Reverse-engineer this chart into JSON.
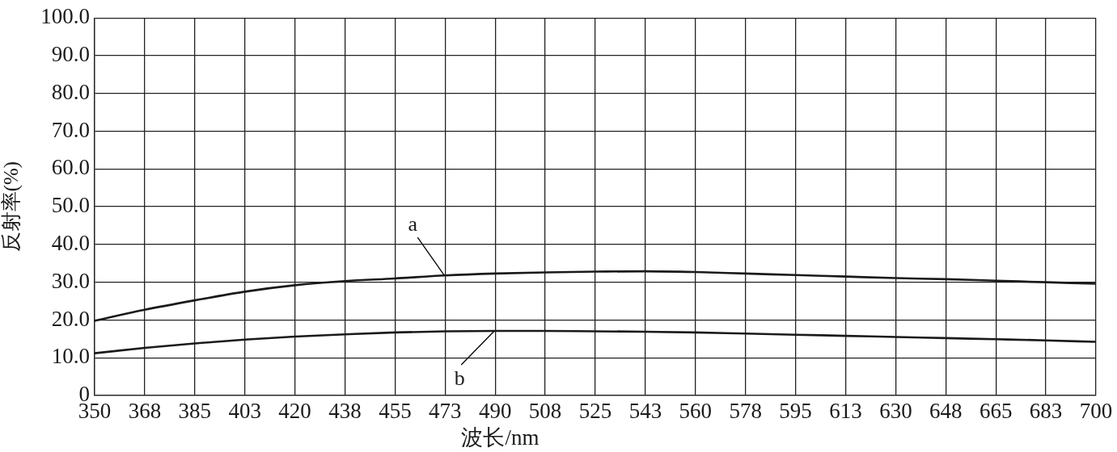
{
  "chart_data": {
    "type": "line",
    "xlabel": "波长/nm",
    "ylabel": "反射率(%)",
    "x": [
      350,
      367.5,
      385,
      402.5,
      420,
      437.5,
      455,
      472.5,
      490,
      507.5,
      525,
      542.5,
      560,
      577.5,
      595,
      612.5,
      630,
      647.5,
      665,
      682.5,
      700
    ],
    "series": [
      {
        "name": "a",
        "color": "#1a1a1a",
        "values": [
          19.8,
          22.7,
          25.2,
          27.5,
          29.2,
          30.3,
          31.0,
          31.8,
          32.3,
          32.6,
          32.8,
          32.9,
          32.7,
          32.3,
          31.9,
          31.5,
          31.1,
          30.8,
          30.4,
          30.0,
          29.6
        ]
      },
      {
        "name": "b",
        "color": "#1a1a1a",
        "values": [
          11.2,
          12.6,
          13.8,
          14.8,
          15.6,
          16.2,
          16.7,
          17.0,
          17.1,
          17.1,
          17.0,
          16.9,
          16.7,
          16.4,
          16.1,
          15.8,
          15.5,
          15.2,
          14.9,
          14.6,
          14.2
        ]
      }
    ],
    "xlim": [
      350,
      700
    ],
    "xticks": [
      350,
      {
        "value": 367.5,
        "label": "368"
      },
      385,
      {
        "value": 402.5,
        "label": "403"
      },
      420,
      {
        "value": 437.5,
        "label": "438"
      },
      455,
      {
        "value": 472.5,
        "label": "473"
      },
      490,
      {
        "value": 507.5,
        "label": "508"
      },
      525,
      {
        "value": 542.5,
        "label": "543"
      },
      560,
      {
        "value": 577.5,
        "label": "578"
      },
      595,
      {
        "value": 612.5,
        "label": "613"
      },
      630,
      {
        "value": 647.5,
        "label": "648"
      },
      665,
      {
        "value": 682.5,
        "label": "683"
      },
      700
    ],
    "ylim": [
      0,
      100
    ],
    "yticks": [
      0,
      {
        "value": 10,
        "label": "10.0"
      },
      {
        "value": 20,
        "label": "20.0"
      },
      {
        "value": 30,
        "label": "30.0"
      },
      {
        "value": 40,
        "label": "40.0"
      },
      {
        "value": 50,
        "label": "50.0"
      },
      {
        "value": 60,
        "label": "60.0"
      },
      {
        "value": 70,
        "label": "70.0"
      },
      {
        "value": 80,
        "label": "80.0"
      },
      {
        "value": 90,
        "label": "90.0"
      },
      {
        "value": 100,
        "label": "100.0"
      }
    ],
    "grid": true,
    "legend": false,
    "marker": "none",
    "line_style": "solid"
  }
}
